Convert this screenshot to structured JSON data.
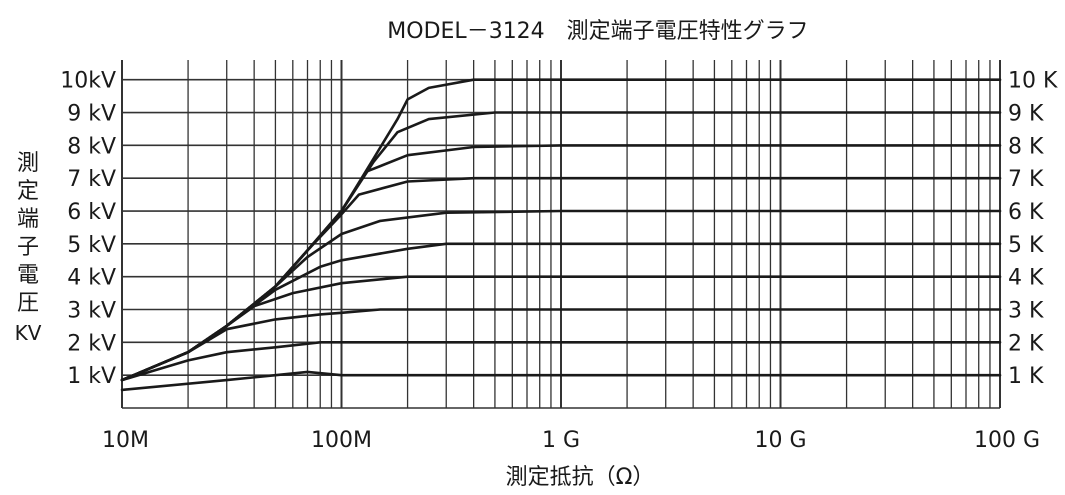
{
  "chart_data": {
    "type": "line",
    "title": "MODEL－3124　測定端子電圧特性グラフ",
    "xlabel": "測定抵抗（Ω）",
    "ylabel_chars": [
      "測",
      "定",
      "端",
      "子",
      "電",
      "圧"
    ],
    "ylabel_unit": "KV",
    "x_scale": "log",
    "xlim": [
      10000000,
      100000000000
    ],
    "ylim": [
      0,
      10.6
    ],
    "grid": true,
    "x_ticks": [
      {
        "value": 10000000,
        "label": "10M"
      },
      {
        "value": 100000000,
        "label": "100M"
      },
      {
        "value": 1000000000,
        "label": "1 G"
      },
      {
        "value": 10000000000,
        "label": "10 G"
      },
      {
        "value": 100000000000,
        "label": "100 G"
      }
    ],
    "y_ticks_left": [
      {
        "value": 1,
        "label": "1 kV"
      },
      {
        "value": 2,
        "label": "2 kV"
      },
      {
        "value": 3,
        "label": "3 kV"
      },
      {
        "value": 4,
        "label": "4 kV"
      },
      {
        "value": 5,
        "label": "5 kV"
      },
      {
        "value": 6,
        "label": "6 kV"
      },
      {
        "value": 7,
        "label": "7 kV"
      },
      {
        "value": 8,
        "label": "8 kV"
      },
      {
        "value": 9,
        "label": "9 kV"
      },
      {
        "value": 10,
        "label": "10kV"
      }
    ],
    "series_labels_right": [
      {
        "value": 1,
        "label": "1 K"
      },
      {
        "value": 2,
        "label": "2 K"
      },
      {
        "value": 3,
        "label": "3 K"
      },
      {
        "value": 4,
        "label": "4 K"
      },
      {
        "value": 5,
        "label": "5 K"
      },
      {
        "value": 6,
        "label": "6 K"
      },
      {
        "value": 7,
        "label": "7 K"
      },
      {
        "value": 8,
        "label": "8 K"
      },
      {
        "value": 9,
        "label": "9 K"
      },
      {
        "value": 10,
        "label": "10 K"
      }
    ],
    "series": [
      {
        "points": [
          [
            10000000,
            0.55
          ],
          [
            30000000,
            0.85
          ],
          [
            50000000,
            1.0
          ],
          [
            70000000,
            1.1
          ],
          [
            100000000,
            1.0
          ],
          [
            1000000000,
            1.0
          ],
          [
            100000000000,
            1.0
          ]
        ]
      },
      {
        "points": [
          [
            10000000,
            0.85
          ],
          [
            20000000,
            1.45
          ],
          [
            30000000,
            1.7
          ],
          [
            50000000,
            1.85
          ],
          [
            80000000,
            2.0
          ],
          [
            100000000,
            2.0
          ],
          [
            1000000000,
            2.0
          ],
          [
            100000000000,
            2.0
          ]
        ]
      },
      {
        "points": [
          [
            10000000,
            0.85
          ],
          [
            20000000,
            1.7
          ],
          [
            30000000,
            2.4
          ],
          [
            50000000,
            2.7
          ],
          [
            80000000,
            2.85
          ],
          [
            100000000,
            2.9
          ],
          [
            150000000,
            3.0
          ],
          [
            1000000000,
            3.0
          ],
          [
            100000000000,
            3.0
          ]
        ]
      },
      {
        "points": [
          [
            10000000,
            0.85
          ],
          [
            20000000,
            1.7
          ],
          [
            30000000,
            2.5
          ],
          [
            40000000,
            3.1
          ],
          [
            60000000,
            3.5
          ],
          [
            100000000,
            3.8
          ],
          [
            200000000,
            4.0
          ],
          [
            1000000000,
            4.0
          ],
          [
            100000000000,
            4.0
          ]
        ]
      },
      {
        "points": [
          [
            10000000,
            0.85
          ],
          [
            20000000,
            1.7
          ],
          [
            30000000,
            2.5
          ],
          [
            50000000,
            3.6
          ],
          [
            80000000,
            4.3
          ],
          [
            100000000,
            4.5
          ],
          [
            200000000,
            4.85
          ],
          [
            300000000,
            5.0
          ],
          [
            1000000000,
            5.0
          ],
          [
            100000000000,
            5.0
          ]
        ]
      },
      {
        "points": [
          [
            10000000,
            0.85
          ],
          [
            20000000,
            1.7
          ],
          [
            30000000,
            2.5
          ],
          [
            50000000,
            3.7
          ],
          [
            70000000,
            4.6
          ],
          [
            100000000,
            5.3
          ],
          [
            150000000,
            5.7
          ],
          [
            300000000,
            5.95
          ],
          [
            1000000000,
            6.0
          ],
          [
            100000000000,
            6.0
          ]
        ]
      },
      {
        "points": [
          [
            10000000,
            0.85
          ],
          [
            20000000,
            1.7
          ],
          [
            30000000,
            2.5
          ],
          [
            50000000,
            3.7
          ],
          [
            70000000,
            4.8
          ],
          [
            100000000,
            5.9
          ],
          [
            120000000,
            6.5
          ],
          [
            200000000,
            6.9
          ],
          [
            400000000,
            7.0
          ],
          [
            1000000000,
            7.0
          ],
          [
            100000000000,
            7.0
          ]
        ]
      },
      {
        "points": [
          [
            10000000,
            0.85
          ],
          [
            20000000,
            1.7
          ],
          [
            30000000,
            2.5
          ],
          [
            50000000,
            3.7
          ],
          [
            70000000,
            4.8
          ],
          [
            100000000,
            6.0
          ],
          [
            130000000,
            7.2
          ],
          [
            200000000,
            7.7
          ],
          [
            400000000,
            7.95
          ],
          [
            1000000000,
            8.0
          ],
          [
            100000000000,
            8.0
          ]
        ]
      },
      {
        "points": [
          [
            10000000,
            0.85
          ],
          [
            20000000,
            1.7
          ],
          [
            30000000,
            2.5
          ],
          [
            50000000,
            3.7
          ],
          [
            70000000,
            4.8
          ],
          [
            100000000,
            6.0
          ],
          [
            140000000,
            7.5
          ],
          [
            180000000,
            8.4
          ],
          [
            250000000,
            8.8
          ],
          [
            500000000,
            9.0
          ],
          [
            1000000000,
            9.0
          ],
          [
            100000000000,
            9.0
          ]
        ]
      },
      {
        "points": [
          [
            10000000,
            0.85
          ],
          [
            20000000,
            1.7
          ],
          [
            30000000,
            2.5
          ],
          [
            50000000,
            3.7
          ],
          [
            70000000,
            4.8
          ],
          [
            100000000,
            6.0
          ],
          [
            140000000,
            7.6
          ],
          [
            180000000,
            8.8
          ],
          [
            200000000,
            9.4
          ],
          [
            250000000,
            9.75
          ],
          [
            400000000,
            10.0
          ],
          [
            1000000000,
            10.0
          ],
          [
            100000000000,
            10.0
          ]
        ]
      }
    ]
  }
}
